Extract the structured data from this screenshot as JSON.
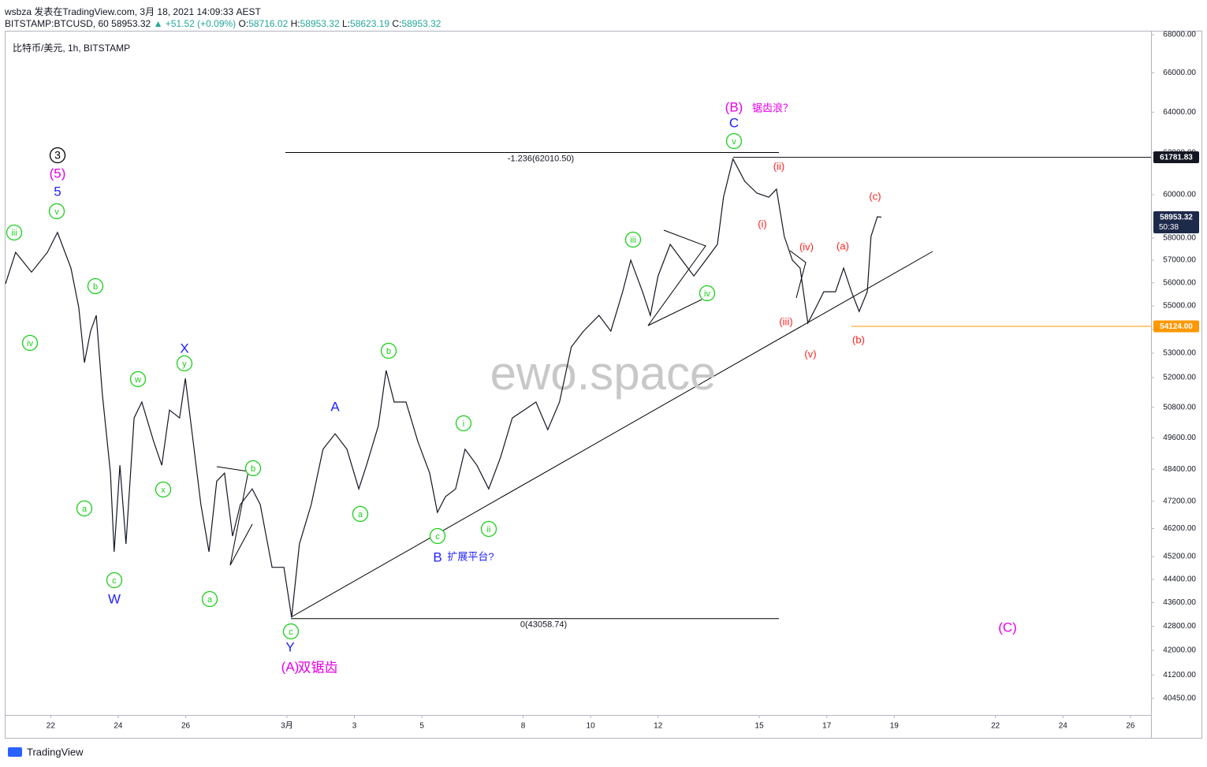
{
  "header": {
    "author_line": "wsbza 发表在TradingView.com, 3月 18, 2021 14:09:33 AEST",
    "symbol": "BITSTAMP:BTCUSD, 60",
    "last": "58953.32",
    "change": "▲ +51.52 (+0.09%)",
    "ohlc": [
      [
        "O:",
        "58716.02"
      ],
      [
        "H:",
        "58953.32"
      ],
      [
        "L:",
        "58623.19"
      ],
      [
        "C:",
        "58953.32"
      ]
    ],
    "legend": "比特币/美元, 1h, BITSTAMP"
  },
  "footer": {
    "brand": "TradingView"
  },
  "chart_data": {
    "type": "line",
    "log_scale": true,
    "watermark": "ewo.space",
    "x": [
      -8.34,
      -8.04,
      -7.57,
      -7.1,
      -6.8,
      -6.4,
      -6.17,
      -6.0,
      -5.82,
      -5.65,
      -5.47,
      -5.23,
      -5.12,
      -4.95,
      -4.77,
      -4.53,
      -4.3,
      -3.95,
      -3.71,
      -3.48,
      -3.18,
      -3.01,
      -2.78,
      -2.55,
      -2.31,
      -2.08,
      -1.85,
      -1.61,
      -1.38,
      -1.03,
      -0.79,
      -0.44,
      -0.09,
      0.14,
      0.37,
      0.72,
      1.07,
      1.43,
      1.78,
      2.13,
      2.36,
      2.71,
      2.94,
      3.18,
      3.53,
      3.88,
      4.23,
      4.46,
      4.7,
      5.0,
      5.28,
      5.63,
      5.98,
      6.33,
      6.68,
      7.03,
      7.38,
      7.73,
      8.08,
      8.43,
      8.79,
      9.25,
      9.6,
      9.95,
      10.19,
      10.54,
      10.77,
      11.0,
      11.36,
      11.71,
      12.06,
      12.41,
      12.76,
      12.94,
      13.22,
      13.57,
      13.93,
      14.28,
      14.51,
      14.74,
      14.98,
      15.21,
      15.44,
      15.68,
      15.91,
      16.26,
      16.5,
      16.73,
      16.96,
      17.2,
      17.31,
      17.5,
      17.62
    ],
    "series": [
      {
        "color": "#131722",
        "values": [
          55960,
          57350,
          56470,
          57350,
          58250,
          56650,
          54930,
          52610,
          53920,
          54590,
          51330,
          48250,
          45370,
          48550,
          45650,
          50380,
          51010,
          49460,
          48550,
          50690,
          50380,
          51960,
          49460,
          47080,
          45370,
          47950,
          48250,
          45930,
          47080,
          47660,
          47080,
          44820,
          44820,
          43100,
          45650,
          47080,
          49160,
          49760,
          49160,
          47660,
          48550,
          50070,
          52290,
          51010,
          51010,
          49460,
          48250,
          46790,
          47370,
          47660,
          49160,
          48550,
          47660,
          48850,
          50380,
          50690,
          51010,
          49920,
          51010,
          53260,
          53920,
          54590,
          53920,
          55610,
          57000,
          55610,
          54590,
          56300,
          57710,
          57000,
          56300,
          57000,
          57710,
          59880,
          61700,
          60630,
          60070,
          59880,
          60260,
          58070,
          57000,
          56650,
          54260,
          54930,
          55610,
          55610,
          56650,
          55610,
          54760,
          55610,
          58070,
          58970,
          58953.32
        ]
      }
    ],
    "xlim": [
      -8.34,
      25.61
    ],
    "xticks": [
      {
        "value": -7,
        "label": "22"
      },
      {
        "value": -5,
        "label": "24"
      },
      {
        "value": -3,
        "label": "26"
      },
      {
        "value": 0,
        "label": "3月"
      },
      {
        "value": 2,
        "label": "3"
      },
      {
        "value": 4,
        "label": "5"
      },
      {
        "value": 7,
        "label": "8"
      },
      {
        "value": 9,
        "label": "10"
      },
      {
        "value": 11,
        "label": "12"
      },
      {
        "value": 14,
        "label": "15"
      },
      {
        "value": 16,
        "label": "17"
      },
      {
        "value": 18,
        "label": "19"
      },
      {
        "value": 21,
        "label": "22"
      },
      {
        "value": 23,
        "label": "24"
      },
      {
        "value": 25,
        "label": "26"
      }
    ],
    "ylim": [
      39930,
      68170
    ],
    "yticks": [
      {
        "value": 68000,
        "label": "68000.00"
      },
      {
        "value": 66000,
        "label": "66000.00"
      },
      {
        "value": 64000,
        "label": "64000.00"
      },
      {
        "value": 62000,
        "label": "62000.00"
      },
      {
        "value": 60000,
        "label": "60000.00"
      },
      {
        "value": 58000,
        "label": "58000.00"
      },
      {
        "value": 57000,
        "label": "57000.00"
      },
      {
        "value": 56000,
        "label": "56000.00"
      },
      {
        "value": 55000,
        "label": "55000.00"
      },
      {
        "value": 54000,
        "label": "54000.00"
      },
      {
        "value": 53000,
        "label": "53000.00"
      },
      {
        "value": 52000,
        "label": "52000.00"
      },
      {
        "value": 50800,
        "label": "50800.00"
      },
      {
        "value": 49600,
        "label": "49600.00"
      },
      {
        "value": 48400,
        "label": "48400.00"
      },
      {
        "value": 47200,
        "label": "47200.00"
      },
      {
        "value": 46200,
        "label": "46200.00"
      },
      {
        "value": 45200,
        "label": "45200.00"
      },
      {
        "value": 44400,
        "label": "44400.00"
      },
      {
        "value": 43600,
        "label": "43600.00"
      },
      {
        "value": 42800,
        "label": "42800.00"
      },
      {
        "value": 42000,
        "label": "42000.00"
      },
      {
        "value": 41200,
        "label": "41200.00"
      },
      {
        "value": 40450,
        "label": "40450.00"
      }
    ],
    "levels": [
      {
        "value": 62010.5,
        "label": "-1.236(62010.50)"
      },
      {
        "value": 43058.74,
        "label": "0(43058.74)"
      }
    ],
    "price_labels": [
      {
        "value": 61781.83,
        "label": "61781.83",
        "color": "#131722"
      },
      {
        "value": 58953.32,
        "label": "58953.32",
        "sub": "50:38",
        "color": "#1e2a4a"
      },
      {
        "value": 54124,
        "label": "54124.00",
        "color": "#ff9800"
      }
    ],
    "annotations": [
      {
        "text": "iii",
        "color": "#19cf19",
        "circled": true
      },
      {
        "text": "iv",
        "color": "#19cf19",
        "circled": true
      },
      {
        "text": "v",
        "color": "#19cf19",
        "circled": true
      },
      {
        "text": "b",
        "color": "#19cf19",
        "circled": true
      },
      {
        "text": "a",
        "color": "#19cf19",
        "circled": true
      },
      {
        "text": "c",
        "color": "#19cf19",
        "circled": true
      },
      {
        "text": "w",
        "color": "#19cf19",
        "circled": true
      },
      {
        "text": "x",
        "color": "#19cf19",
        "circled": true
      },
      {
        "text": "y",
        "color": "#19cf19",
        "circled": true
      },
      {
        "text": "b",
        "color": "#19cf19",
        "circled": true
      },
      {
        "text": "a",
        "color": "#19cf19",
        "circled": true
      },
      {
        "text": "c",
        "color": "#19cf19",
        "circled": true
      },
      {
        "text": "a",
        "color": "#19cf19",
        "circled": true
      },
      {
        "text": "b",
        "color": "#19cf19",
        "circled": true
      },
      {
        "text": "i",
        "color": "#19cf19",
        "circled": true
      },
      {
        "text": "ii",
        "color": "#19cf19",
        "circled": true
      },
      {
        "text": "c",
        "color": "#19cf19",
        "circled": true
      },
      {
        "text": "iii",
        "color": "#19cf19",
        "circled": true
      },
      {
        "text": "iv",
        "color": "#19cf19",
        "circled": true
      },
      {
        "text": "v",
        "color": "#19cf19",
        "circled": true
      },
      {
        "text": "3",
        "color": "#000000",
        "circled": true
      },
      {
        "text": "(5)",
        "color": "#e600e6",
        "circled": false
      },
      {
        "text": "(B)",
        "color": "#e600e6",
        "circled": false
      },
      {
        "text": "锯齿浪？",
        "color": "#e600e6",
        "circled": false
      },
      {
        "text": "(A)",
        "color": "#e600e6",
        "circled": false
      },
      {
        "text": "双锯齿",
        "color": "#e600e6",
        "circled": false
      },
      {
        "text": "(C)",
        "color": "#e600e6",
        "circled": false
      },
      {
        "text": "5",
        "color": "#1f1fff",
        "circled": false
      },
      {
        "text": "W",
        "color": "#1f1fff",
        "circled": false
      },
      {
        "text": "X",
        "color": "#1f1fff",
        "circled": false
      },
      {
        "text": "Y",
        "color": "#1f1fff",
        "circled": false
      },
      {
        "text": "A",
        "color": "#1f1fff",
        "circled": false
      },
      {
        "text": "B",
        "color": "#1f1fff",
        "circled": false
      },
      {
        "text": "扩展平台?",
        "color": "#1f1fff",
        "circled": false
      },
      {
        "text": "C",
        "color": "#1f1fff",
        "circled": false
      },
      {
        "text": "(ii)",
        "color": "#ff2020",
        "circled": false
      },
      {
        "text": "(i)",
        "color": "#ff2020",
        "circled": false
      },
      {
        "text": "(iv)",
        "color": "#ff2020",
        "circled": false
      },
      {
        "text": "(a)",
        "color": "#ff2020",
        "circled": false
      },
      {
        "text": "(c)",
        "color": "#ff2020",
        "circled": false
      },
      {
        "text": "(iii)",
        "color": "#ff2020",
        "circled": false
      },
      {
        "text": "(v)",
        "color": "#ff2020",
        "circled": false
      },
      {
        "text": "(b)",
        "color": "#ff2020",
        "circled": false
      }
    ]
  }
}
